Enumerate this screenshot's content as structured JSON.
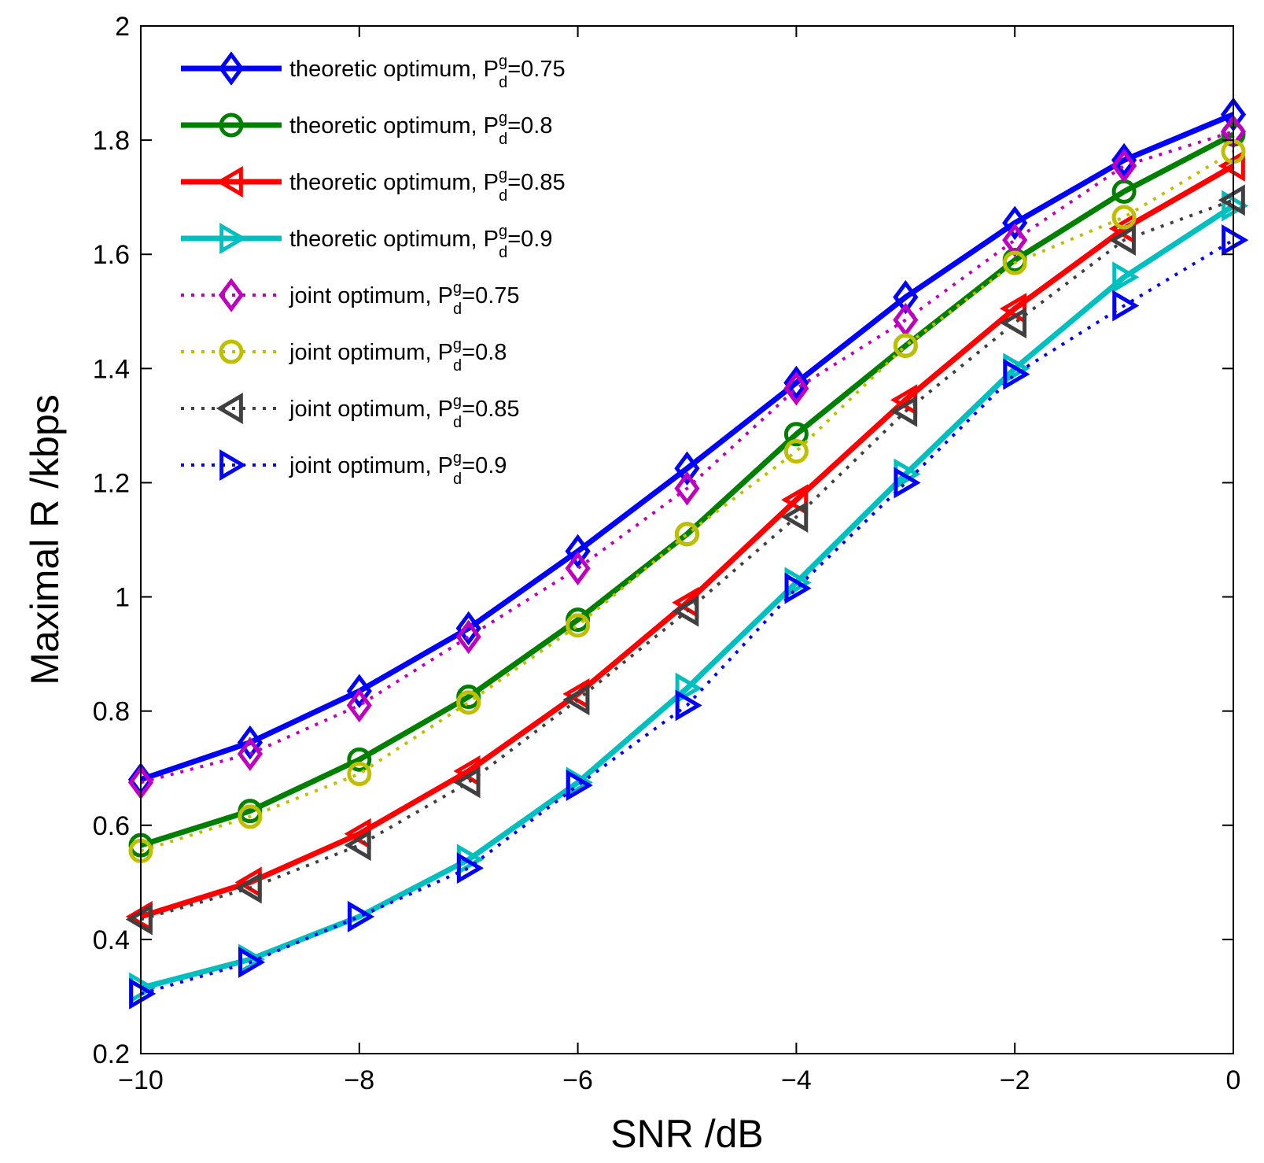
{
  "chart_data": {
    "type": "line",
    "title": "",
    "xlabel": "SNR /dB",
    "ylabel": "Maximal R /kbps",
    "xlim": [
      -10,
      0
    ],
    "ylim": [
      0.2,
      2
    ],
    "xticks": [
      -10,
      -8,
      -6,
      -4,
      -2,
      0
    ],
    "xtick_labels": [
      "−10",
      "−8",
      "−6",
      "−4",
      "−2",
      "0"
    ],
    "yticks": [
      0.2,
      0.4,
      0.6,
      0.8,
      1,
      1.2,
      1.4,
      1.6,
      1.8,
      2
    ],
    "ytick_labels": [
      "0.2",
      "0.4",
      "0.6",
      "0.8",
      "1",
      "1.2",
      "1.4",
      "1.6",
      "1.8",
      "2"
    ],
    "grid": false,
    "legend_position": "top-left",
    "x": [
      -10,
      -9,
      -8,
      -7,
      -6,
      -5,
      -4,
      -3,
      -2,
      -1,
      0
    ],
    "series": [
      {
        "name": "theoretic optimum, P",
        "sup": "g",
        "sub": "d",
        "suffix": "=0.75",
        "color": "#0000ff",
        "style": "solid",
        "marker": "diamond",
        "values": [
          0.68,
          0.745,
          0.835,
          0.945,
          1.08,
          1.225,
          1.375,
          1.525,
          1.655,
          1.765,
          1.845
        ]
      },
      {
        "name": "theoretic optimum, P",
        "sup": "g",
        "sub": "d",
        "suffix": "=0.8",
        "color": "#008000",
        "style": "solid",
        "marker": "circle",
        "values": [
          0.565,
          0.625,
          0.715,
          0.825,
          0.96,
          1.11,
          1.285,
          1.44,
          1.59,
          1.71,
          1.81
        ]
      },
      {
        "name": "theoretic optimum, P",
        "sup": "g",
        "sub": "d",
        "suffix": "=0.85",
        "color": "#ff0000",
        "style": "solid",
        "marker": "triangle-left",
        "values": [
          0.44,
          0.5,
          0.585,
          0.695,
          0.83,
          0.99,
          1.17,
          1.345,
          1.505,
          1.645,
          1.755
        ]
      },
      {
        "name": "theoretic optimum, P",
        "sup": "g",
        "sub": "d",
        "suffix": "=0.9",
        "color": "#00bfbf",
        "style": "solid",
        "marker": "triangle-right",
        "values": [
          0.315,
          0.365,
          0.44,
          0.54,
          0.675,
          0.84,
          1.025,
          1.215,
          1.4,
          1.56,
          1.685
        ]
      },
      {
        "name": "joint optimum, P",
        "sup": "g",
        "sub": "d",
        "suffix": "=0.75",
        "color": "#bf00bf",
        "style": "dotted",
        "marker": "diamond",
        "values": [
          0.675,
          0.725,
          0.81,
          0.93,
          1.05,
          1.19,
          1.365,
          1.485,
          1.625,
          1.755,
          1.815
        ]
      },
      {
        "name": "joint optimum, P",
        "sup": "g",
        "sub": "d",
        "suffix": "=0.8",
        "color": "#bfbf00",
        "style": "dotted",
        "marker": "circle",
        "values": [
          0.555,
          0.615,
          0.69,
          0.815,
          0.95,
          1.11,
          1.255,
          1.44,
          1.585,
          1.665,
          1.78
        ]
      },
      {
        "name": "joint optimum, P",
        "sup": "g",
        "sub": "d",
        "suffix": "=0.85",
        "color": "#404040",
        "style": "dotted",
        "marker": "triangle-left",
        "values": [
          0.435,
          0.49,
          0.565,
          0.675,
          0.82,
          0.975,
          1.14,
          1.325,
          1.48,
          1.625,
          1.695
        ]
      },
      {
        "name": "joint optimum, P",
        "sup": "g",
        "sub": "d",
        "suffix": "=0.9",
        "color": "#0000ff",
        "style": "dotted",
        "marker": "triangle-right",
        "values": [
          0.305,
          0.36,
          0.44,
          0.525,
          0.67,
          0.81,
          1.015,
          1.2,
          1.39,
          1.51,
          1.625
        ]
      }
    ]
  }
}
